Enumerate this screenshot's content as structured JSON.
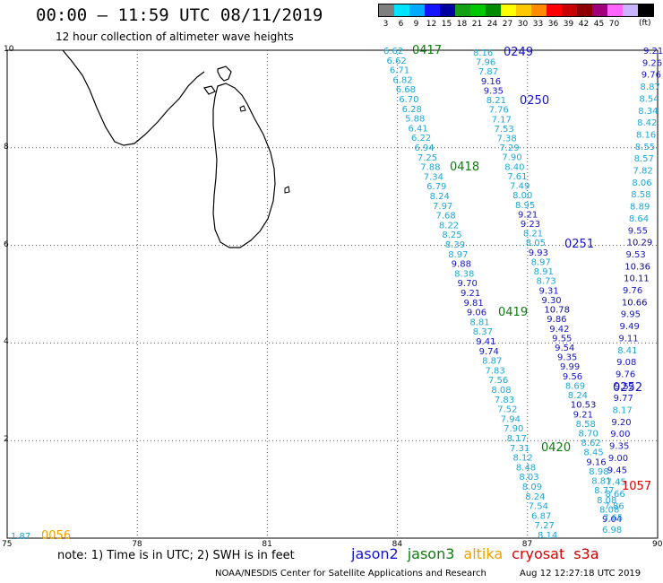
{
  "title": "00:00 – 11:59 UTC 08/11/2019",
  "subtitle": "12 hour collection of altimeter wave heights",
  "legend": {
    "colors": [
      "#7f7f7f",
      "#00e5ff",
      "#00aaff",
      "#1414ff",
      "#0000a0",
      "#14a014",
      "#00c800",
      "#008c00",
      "#ffff00",
      "#ffc800",
      "#ff8c00",
      "#ff0000",
      "#c80000",
      "#8c0000",
      "#a0007a",
      "#ff64ff",
      "#c8b4ff",
      "#000000"
    ],
    "labels": [
      "3",
      "6",
      "9",
      "12",
      "15",
      "18",
      "21",
      "24",
      "27",
      "30",
      "33",
      "36",
      "39",
      "42",
      "45",
      "70"
    ],
    "unit": "(ft)"
  },
  "axes": {
    "y_ticks": [
      "10",
      "8",
      "6",
      "4",
      "2"
    ],
    "x_ticks": [
      "75",
      "78",
      "81",
      "84",
      "87",
      "90"
    ]
  },
  "passes": [
    {
      "id": "0417",
      "color": "#0e7a0e"
    },
    {
      "id": "0418",
      "color": "#0e7a0e"
    },
    {
      "id": "0419",
      "color": "#0e7a0e"
    },
    {
      "id": "0420",
      "color": "#0e7a0e"
    },
    {
      "id": "0249",
      "color": "#1414c8"
    },
    {
      "id": "0250",
      "color": "#1414c8"
    },
    {
      "id": "0251",
      "color": "#1414c8"
    },
    {
      "id": "0252",
      "color": "#1414c8"
    },
    {
      "id": "1057",
      "color": "#e00000"
    },
    {
      "id": "0056",
      "color": "#f0a000"
    }
  ],
  "corner_value": "1.87",
  "track1": [
    "6.62",
    "6.62",
    "6.71",
    "6.82",
    "6.68",
    "6.70",
    "6.28",
    "5.88",
    "6.41",
    "6.22",
    "6.94",
    "7.25",
    "7.88",
    "7.34",
    "6.79",
    "8.24",
    "7.97",
    "7.68",
    "8.22",
    "8.25",
    "8.39",
    "8.97",
    "9.88",
    "8.38",
    "9.70",
    "9.21",
    "9.81",
    "9.06",
    "8.81",
    "8.37",
    "9.41",
    "9.74",
    "8.87",
    "7.83",
    "7.56",
    "8.08",
    "7.83",
    "7.52",
    "7.94",
    "7.90",
    "8.17",
    "7.31",
    "8.12",
    "8.48",
    "8.03",
    "8.09",
    "8.24",
    "7.54",
    "6.87",
    "7.27",
    "8.14"
  ],
  "track2": [
    "8.16",
    "7.96",
    "7.87",
    "9.16",
    "9.35",
    "8.21",
    "7.76",
    "7.17",
    "7.53",
    "7.38",
    "7.29",
    "7.90",
    "8.40",
    "7.61",
    "7.49",
    "8.00",
    "8.95",
    "9.21",
    "9.23",
    "8.21",
    "8.05",
    "9.93",
    "8.97",
    "8.91",
    "8.73",
    "9.31",
    "9.30",
    "10.78",
    "9.86",
    "9.42",
    "9.55",
    "9.54",
    "9.35",
    "9.99",
    "9.56",
    "8.69",
    "8.24",
    "10.53",
    "9.21",
    "8.58",
    "8.70",
    "8.62",
    "8.45",
    "9.16",
    "8.98",
    "8.81",
    "8.77",
    "8.08",
    "8.08",
    "9.04"
  ],
  "track3": [
    "9.21",
    "9.26",
    "9.76",
    "8.87",
    "8.54",
    "8.34",
    "8.42",
    "8.16",
    "8.55",
    "8.57",
    "7.82",
    "8.06",
    "8.58",
    "8.89",
    "8.64",
    "9.55",
    "10.29",
    "9.53",
    "10.36",
    "10.11",
    "9.76",
    "10.66",
    "9.95",
    "9.49",
    "9.11",
    "8.41",
    "9.08",
    "9.76",
    "9.52",
    "9.77",
    "8.17",
    "9.20",
    "9.00",
    "9.35",
    "9.00",
    "9.45",
    "7.45",
    "8.66",
    "7.86",
    "7.65",
    "6.98"
  ],
  "note": "note:  1) Time is in UTC;  2) SWH is in feet",
  "satellites": [
    {
      "name": "jason2",
      "color": "#1414c8"
    },
    {
      "name": "jason3",
      "color": "#0e7a0e"
    },
    {
      "name": "altika",
      "color": "#f0a000"
    },
    {
      "name": "cryosat",
      "color": "#e00000"
    },
    {
      "name": "s3a",
      "color": "#c80000"
    }
  ],
  "footer": "NOAA/NESDIS Center for Satellite Applications and Research",
  "stamp": "Aug 12 12:27:18 UTC 2019"
}
